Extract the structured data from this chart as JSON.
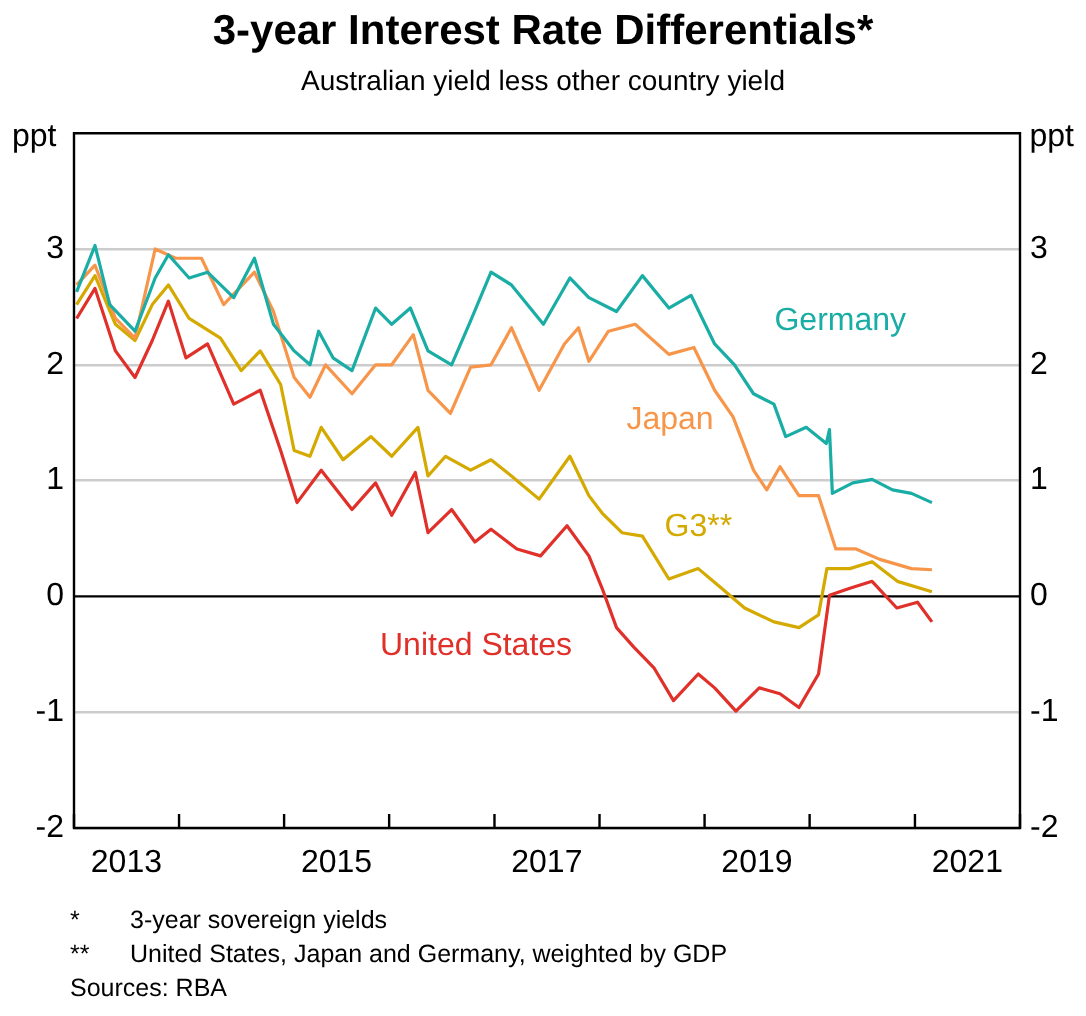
{
  "chart_data": {
    "type": "line",
    "title": "3-year Interest Rate Differentials*",
    "subtitle": "Australian yield less other country yield",
    "ylabel": "ppt",
    "y2label": "ppt",
    "xlim": [
      "2013-01-01",
      "2022-01-01"
    ],
    "xticks": [
      {
        "value": "2013-01-01",
        "label": null
      },
      {
        "value": "2013-07-02",
        "label": "2013"
      },
      {
        "value": "2014-01-01",
        "label": null
      },
      {
        "value": "2015-01-01",
        "label": null
      },
      {
        "value": "2015-07-02",
        "label": "2015"
      },
      {
        "value": "2016-01-01",
        "label": null
      },
      {
        "value": "2017-01-01",
        "label": null
      },
      {
        "value": "2017-07-02",
        "label": "2017"
      },
      {
        "value": "2018-01-01",
        "label": null
      },
      {
        "value": "2019-01-01",
        "label": null
      },
      {
        "value": "2019-07-02",
        "label": "2019"
      },
      {
        "value": "2020-01-01",
        "label": null
      },
      {
        "value": "2021-01-01",
        "label": null
      },
      {
        "value": "2021-07-02",
        "label": "2021"
      },
      {
        "value": "2022-01-01",
        "label": null
      }
    ],
    "ylim": [
      -2,
      4
    ],
    "yticks": [
      -2,
      -1,
      0,
      1,
      2,
      3
    ],
    "y2lim": [
      -2,
      4
    ],
    "y2ticks": [
      -2,
      -1,
      0,
      1,
      2,
      3
    ],
    "grid": "y",
    "legend": false,
    "marker": "none",
    "line_style": "solid",
    "ref_lines": [
      {
        "axis": "y",
        "value": 0,
        "color": "#000000"
      }
    ],
    "series": [
      {
        "name": "Germany",
        "color": "#1aada5",
        "x": [
          "2013-01-10",
          "2013-03-15",
          "2013-05-05",
          "2013-08-01",
          "2013-10-10",
          "2013-11-25",
          "2014-02-05",
          "2014-04-10",
          "2014-07-10",
          "2014-09-20",
          "2014-11-25",
          "2015-02-05",
          "2015-04-01",
          "2015-05-01",
          "2015-06-20",
          "2015-08-25",
          "2015-11-15",
          "2016-01-10",
          "2016-03-15",
          "2016-05-15",
          "2016-08-05",
          "2016-10-10",
          "2016-12-20",
          "2017-03-01",
          "2017-06-20",
          "2017-09-20",
          "2017-11-25",
          "2018-03-01",
          "2018-05-30",
          "2018-08-30",
          "2018-11-15",
          "2019-02-05",
          "2019-04-15",
          "2019-06-20",
          "2019-08-30",
          "2019-10-10",
          "2019-12-20",
          "2020-02-28",
          "2020-03-10",
          "2020-03-20",
          "2020-05-30",
          "2020-08-05",
          "2020-10-15",
          "2020-12-20",
          "2021-03-01"
        ],
        "values": [
          2.63,
          3.03,
          2.52,
          2.29,
          2.75,
          2.95,
          2.75,
          2.8,
          2.58,
          2.92,
          2.35,
          2.12,
          2.0,
          2.29,
          2.06,
          1.95,
          2.49,
          2.35,
          2.49,
          2.12,
          2.0,
          2.38,
          2.8,
          2.69,
          2.35,
          2.75,
          2.58,
          2.46,
          2.77,
          2.49,
          2.6,
          2.18,
          2.0,
          1.75,
          1.66,
          1.38,
          1.46,
          1.32,
          1.44,
          0.89,
          0.98,
          1.01,
          0.92,
          0.89,
          0.81
        ]
      },
      {
        "name": "Japan",
        "color": "#f7964a",
        "x": [
          "2013-01-10",
          "2013-03-15",
          "2013-05-25",
          "2013-08-01",
          "2013-10-10",
          "2013-12-20",
          "2014-03-20",
          "2014-06-05",
          "2014-09-20",
          "2014-11-25",
          "2015-02-05",
          "2015-04-01",
          "2015-05-25",
          "2015-08-25",
          "2015-11-15",
          "2016-01-10",
          "2016-03-25",
          "2016-05-15",
          "2016-08-01",
          "2016-10-10",
          "2016-12-20",
          "2017-03-01",
          "2017-06-05",
          "2017-09-01",
          "2017-10-20",
          "2017-11-25",
          "2018-02-01",
          "2018-05-05",
          "2018-08-30",
          "2018-11-25",
          "2019-02-05",
          "2019-04-10",
          "2019-06-20",
          "2019-08-05",
          "2019-09-20",
          "2019-11-25",
          "2020-02-01",
          "2020-03-10",
          "2020-04-01",
          "2020-06-10",
          "2020-09-01",
          "2020-12-20",
          "2021-03-01"
        ],
        "values": [
          2.69,
          2.86,
          2.4,
          2.23,
          3.0,
          2.92,
          2.92,
          2.52,
          2.8,
          2.46,
          1.89,
          1.72,
          2.0,
          1.75,
          2.0,
          2.0,
          2.26,
          1.78,
          1.58,
          1.98,
          2.0,
          2.32,
          1.78,
          2.18,
          2.32,
          2.03,
          2.29,
          2.35,
          2.09,
          2.15,
          1.78,
          1.55,
          1.09,
          0.92,
          1.12,
          0.87,
          0.87,
          0.58,
          0.41,
          0.41,
          0.32,
          0.24,
          0.23
        ]
      },
      {
        "name": "G3**",
        "color": "#d4a900",
        "x": [
          "2013-01-10",
          "2013-03-15",
          "2013-05-25",
          "2013-08-01",
          "2013-09-30",
          "2013-11-25",
          "2014-02-05",
          "2014-05-25",
          "2014-08-05",
          "2014-10-10",
          "2014-12-20",
          "2015-02-05",
          "2015-04-01",
          "2015-05-10",
          "2015-07-25",
          "2015-10-30",
          "2016-01-10",
          "2016-04-10",
          "2016-05-15",
          "2016-07-15",
          "2016-10-10",
          "2016-12-20",
          "2017-03-01",
          "2017-06-05",
          "2017-09-20",
          "2017-11-25",
          "2018-01-10",
          "2018-03-20",
          "2018-05-30",
          "2018-08-30",
          "2018-12-10",
          "2019-03-01",
          "2019-05-20",
          "2019-08-30",
          "2019-11-25",
          "2020-02-01",
          "2020-03-01",
          "2020-05-20",
          "2020-08-05",
          "2020-11-01",
          "2021-03-01"
        ],
        "values": [
          2.52,
          2.77,
          2.35,
          2.21,
          2.52,
          2.69,
          2.4,
          2.23,
          1.95,
          2.12,
          1.83,
          1.26,
          1.21,
          1.46,
          1.18,
          1.38,
          1.21,
          1.46,
          1.04,
          1.21,
          1.09,
          1.18,
          1.04,
          0.84,
          1.21,
          0.87,
          0.72,
          0.55,
          0.52,
          0.15,
          0.24,
          0.07,
          -0.1,
          -0.22,
          -0.27,
          -0.16,
          0.24,
          0.24,
          0.3,
          0.13,
          0.04
        ]
      },
      {
        "name": "United States",
        "color": "#e0302a",
        "x": [
          "2013-01-10",
          "2013-03-15",
          "2013-05-25",
          "2013-08-01",
          "2013-09-30",
          "2013-11-25",
          "2014-01-25",
          "2014-04-10",
          "2014-07-10",
          "2014-10-10",
          "2014-12-20",
          "2015-02-15",
          "2015-05-10",
          "2015-08-25",
          "2015-11-15",
          "2016-01-10",
          "2016-04-01",
          "2016-05-15",
          "2016-08-05",
          "2016-10-25",
          "2016-12-20",
          "2017-03-20",
          "2017-06-10",
          "2017-09-10",
          "2017-11-25",
          "2018-01-10",
          "2018-03-01",
          "2018-05-01",
          "2018-07-10",
          "2018-09-15",
          "2018-12-10",
          "2019-02-05",
          "2019-04-20",
          "2019-07-10",
          "2019-09-20",
          "2019-11-25",
          "2020-02-01",
          "2020-03-10",
          "2020-05-20",
          "2020-08-05",
          "2020-10-30",
          "2021-01-10",
          "2021-03-01"
        ],
        "values": [
          2.4,
          2.66,
          2.12,
          1.89,
          2.21,
          2.55,
          2.06,
          2.18,
          1.66,
          1.78,
          1.26,
          0.81,
          1.09,
          0.75,
          0.98,
          0.7,
          1.07,
          0.55,
          0.75,
          0.47,
          0.58,
          0.41,
          0.35,
          0.61,
          0.35,
          0.07,
          -0.27,
          -0.44,
          -0.62,
          -0.9,
          -0.67,
          -0.79,
          -0.99,
          -0.79,
          -0.84,
          -0.96,
          -0.67,
          0.01,
          0.07,
          0.13,
          -0.1,
          -0.05,
          -0.22
        ]
      }
    ],
    "annotations": [
      "*\t3-year sovereign yields",
      "**\tUnited States, Japan and Germany, weighted by GDP",
      "Sources: RBA"
    ]
  }
}
